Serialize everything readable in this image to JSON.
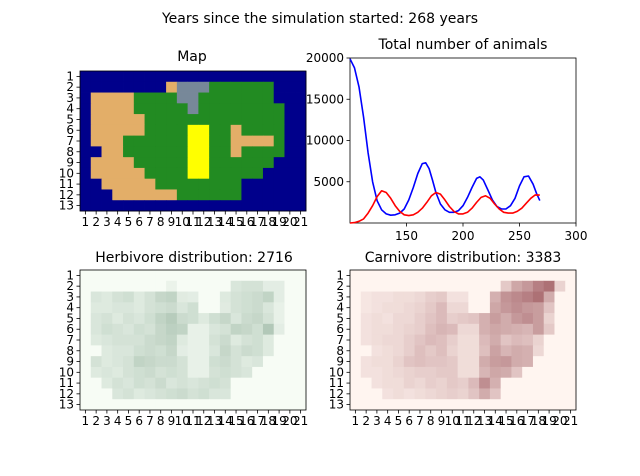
{
  "figure": {
    "suptitle": "Years since the simulation started: 268 years"
  },
  "colors": {
    "water": "#00008b",
    "desert": "#e3ae68",
    "lowland": "#228b22",
    "highland": "#778899",
    "selected": "#ffff00",
    "herbivore_line": "#0000ff",
    "carnivore_line": "#ff0000",
    "herb_cmap_low": "#f7fcf5",
    "herb_cmap_high": "#00441b",
    "carn_cmap_low": "#fff5f0",
    "carn_cmap_high": "#67000d"
  },
  "chart_data": [
    {
      "type": "heatmap",
      "title": "Map",
      "x_ticks": [
        "1",
        "2",
        "3",
        "4",
        "5",
        "6",
        "7",
        "8",
        "9",
        "10",
        "11",
        "12",
        "13",
        "14",
        "15",
        "16",
        "17",
        "18",
        "19",
        "20",
        "21"
      ],
      "y_ticks": [
        "1",
        "2",
        "3",
        "4",
        "5",
        "6",
        "7",
        "8",
        "9",
        "10",
        "11",
        "12",
        "13"
      ],
      "legend": {
        "W": "water",
        "D": "desert",
        "L": "lowland",
        "H": "highland",
        "Y": "selected"
      },
      "grid": [
        "WWWWWWWWWWWWWWWWWWWWW",
        "WWWWWWWWDHHHLLLLLLWWW",
        "WDDDDLLLLHHLLLLLLLWWW",
        "WDDDDLLLLLHLLLLLLLLWW",
        "WDDDDDLLLLLLLLLLLLLWW",
        "WDDDDDLLLLYYLLDLLLLWW",
        "WDDDLLLLLLYYLLDDDDLWW",
        "WWDDLLLLLLYYLLDLLLLWW",
        "WDDDDLLLLLYYLLLLLLWWW",
        "WDDDDDLLLLYYLLLLLWWWW",
        "WWDDDDDLLLLLLLLWWWWWW",
        "WWWDDDDDDLLLLLLWWWWWW",
        "WWWWWWWWWWWWWWWWWWWWW"
      ]
    },
    {
      "type": "line",
      "title": "Total number of animals",
      "xlim": [
        100,
        300
      ],
      "ylim": [
        0,
        20000
      ],
      "x_ticks": [
        150,
        200,
        250,
        300
      ],
      "y_ticks": [
        5000,
        10000,
        15000,
        20000
      ],
      "series": [
        {
          "color": "#0000ff",
          "x": [
            100,
            104,
            108,
            112,
            116,
            120,
            124,
            128,
            132,
            136,
            140,
            144,
            148,
            152,
            156,
            160,
            164,
            167,
            170,
            173,
            176,
            180,
            184,
            188,
            192,
            196,
            200,
            204,
            208,
            212,
            215,
            218,
            222,
            226,
            230,
            234,
            238,
            242,
            246,
            250,
            254,
            258,
            262,
            265,
            268
          ],
          "values": [
            19900,
            18800,
            16500,
            12800,
            8500,
            5000,
            2700,
            1600,
            1100,
            950,
            1000,
            1200,
            1700,
            2800,
            4300,
            6000,
            7200,
            7300,
            6600,
            5200,
            3700,
            2300,
            1600,
            1300,
            1300,
            1500,
            2100,
            3100,
            4300,
            5400,
            5600,
            5200,
            4000,
            2800,
            2000,
            1700,
            1700,
            2100,
            3000,
            4500,
            5600,
            5700,
            4700,
            3600,
            2716
          ]
        },
        {
          "color": "#ff0000",
          "x": [
            100,
            104,
            108,
            112,
            116,
            120,
            124,
            128,
            132,
            136,
            140,
            144,
            148,
            152,
            156,
            160,
            164,
            168,
            172,
            176,
            180,
            184,
            188,
            192,
            196,
            200,
            204,
            208,
            212,
            216,
            220,
            224,
            228,
            232,
            236,
            240,
            244,
            248,
            252,
            256,
            260,
            264,
            268
          ],
          "values": [
            0,
            50,
            200,
            500,
            1200,
            2100,
            3200,
            3900,
            3700,
            3000,
            2100,
            1400,
            1000,
            900,
            1000,
            1300,
            1800,
            2500,
            3300,
            3700,
            3500,
            2800,
            2000,
            1400,
            1100,
            1100,
            1300,
            1800,
            2500,
            3100,
            3300,
            3000,
            2300,
            1700,
            1300,
            1200,
            1200,
            1400,
            1800,
            2400,
            3000,
            3400,
            3383
          ]
        }
      ]
    },
    {
      "type": "heatmap",
      "title": "Herbivore distribution: 2716",
      "x_ticks": [
        "1",
        "2",
        "3",
        "4",
        "5",
        "6",
        "7",
        "8",
        "9",
        "10",
        "11",
        "12",
        "13",
        "14",
        "15",
        "16",
        "17",
        "18",
        "19",
        "20",
        "21"
      ],
      "y_ticks": [
        "1",
        "2",
        "3",
        "4",
        "5",
        "6",
        "7",
        "8",
        "9",
        "10",
        "11",
        "12",
        "13"
      ],
      "value_range": [
        0,
        100
      ],
      "grid": [
        [
          0,
          0,
          0,
          0,
          0,
          0,
          0,
          0,
          0,
          0,
          0,
          0,
          0,
          0,
          0,
          0,
          0,
          0,
          0,
          0,
          0
        ],
        [
          0,
          0,
          0,
          0,
          0,
          0,
          0,
          0,
          5,
          0,
          0,
          0,
          0,
          0,
          12,
          14,
          14,
          8,
          8,
          0,
          0
        ],
        [
          0,
          12,
          10,
          14,
          16,
          10,
          14,
          20,
          22,
          9,
          8,
          0,
          0,
          10,
          14,
          16,
          18,
          22,
          8,
          0,
          0
        ],
        [
          0,
          10,
          10,
          12,
          12,
          10,
          14,
          16,
          18,
          12,
          16,
          0,
          0,
          9,
          14,
          16,
          18,
          12,
          6,
          0,
          0
        ],
        [
          0,
          12,
          14,
          10,
          14,
          12,
          16,
          22,
          26,
          18,
          16,
          10,
          16,
          20,
          12,
          18,
          20,
          14,
          6,
          0,
          0
        ],
        [
          0,
          12,
          16,
          14,
          12,
          16,
          14,
          20,
          24,
          22,
          6,
          6,
          12,
          14,
          22,
          20,
          16,
          28,
          8,
          0,
          0
        ],
        [
          0,
          10,
          12,
          14,
          14,
          14,
          18,
          20,
          22,
          10,
          6,
          6,
          14,
          18,
          10,
          14,
          16,
          10,
          0,
          0,
          0
        ],
        [
          0,
          0,
          10,
          12,
          12,
          16,
          18,
          16,
          20,
          8,
          6,
          6,
          12,
          20,
          14,
          18,
          16,
          10,
          0,
          0,
          0
        ],
        [
          0,
          14,
          10,
          12,
          14,
          22,
          20,
          18,
          18,
          14,
          6,
          6,
          16,
          18,
          14,
          10,
          12,
          0,
          0,
          0,
          0
        ],
        [
          0,
          10,
          12,
          10,
          14,
          16,
          18,
          14,
          16,
          14,
          6,
          6,
          14,
          16,
          14,
          12,
          0,
          0,
          0,
          0,
          0
        ],
        [
          0,
          0,
          10,
          14,
          12,
          16,
          14,
          18,
          12,
          14,
          12,
          14,
          16,
          14,
          0,
          0,
          0,
          0,
          0,
          0,
          0
        ],
        [
          0,
          0,
          0,
          12,
          14,
          10,
          12,
          14,
          16,
          18,
          14,
          16,
          12,
          12,
          0,
          0,
          0,
          0,
          0,
          0,
          0
        ],
        [
          0,
          0,
          0,
          0,
          0,
          0,
          0,
          0,
          0,
          0,
          0,
          0,
          0,
          0,
          0,
          0,
          0,
          0,
          0,
          0,
          0
        ]
      ]
    },
    {
      "type": "heatmap",
      "title": "Carnivore distribution: 3383",
      "x_ticks": [
        "1",
        "2",
        "3",
        "4",
        "5",
        "6",
        "7",
        "8",
        "9",
        "10",
        "11",
        "12",
        "13",
        "14",
        "15",
        "16",
        "17",
        "18",
        "19",
        "20",
        "21"
      ],
      "y_ticks": [
        "1",
        "2",
        "3",
        "4",
        "5",
        "6",
        "7",
        "8",
        "9",
        "10",
        "11",
        "12",
        "13"
      ],
      "value_range": [
        0,
        100
      ],
      "grid": [
        [
          0,
          0,
          0,
          0,
          0,
          0,
          0,
          0,
          0,
          0,
          0,
          0,
          0,
          0,
          0,
          0,
          0,
          0,
          0,
          0,
          0
        ],
        [
          0,
          0,
          0,
          0,
          0,
          0,
          0,
          0,
          0,
          0,
          0,
          0,
          0,
          0,
          18,
          32,
          38,
          48,
          54,
          14,
          0
        ],
        [
          0,
          6,
          8,
          8,
          10,
          10,
          12,
          16,
          18,
          8,
          8,
          0,
          0,
          28,
          40,
          44,
          48,
          54,
          30,
          0,
          0
        ],
        [
          0,
          6,
          8,
          10,
          10,
          12,
          14,
          18,
          24,
          12,
          12,
          0,
          0,
          32,
          38,
          42,
          38,
          36,
          20,
          0,
          0
        ],
        [
          0,
          8,
          10,
          8,
          12,
          12,
          16,
          20,
          24,
          16,
          18,
          20,
          28,
          36,
          30,
          38,
          42,
          36,
          14,
          0,
          0
        ],
        [
          0,
          8,
          10,
          10,
          12,
          14,
          16,
          22,
          26,
          24,
          12,
          12,
          28,
          32,
          30,
          28,
          26,
          36,
          18,
          0,
          0
        ],
        [
          0,
          8,
          10,
          12,
          12,
          16,
          20,
          24,
          22,
          16,
          10,
          10,
          24,
          30,
          20,
          24,
          22,
          14,
          0,
          0,
          0
        ],
        [
          0,
          0,
          8,
          10,
          12,
          16,
          22,
          18,
          22,
          14,
          10,
          10,
          22,
          34,
          26,
          30,
          28,
          12,
          0,
          0,
          0
        ],
        [
          0,
          8,
          10,
          10,
          14,
          20,
          22,
          20,
          20,
          18,
          10,
          10,
          30,
          36,
          38,
          30,
          28,
          0,
          0,
          0,
          0
        ],
        [
          0,
          8,
          8,
          10,
          12,
          14,
          16,
          16,
          18,
          18,
          10,
          10,
          26,
          32,
          30,
          20,
          0,
          0,
          0,
          0,
          0
        ],
        [
          0,
          0,
          8,
          10,
          10,
          14,
          12,
          16,
          14,
          18,
          16,
          24,
          42,
          28,
          0,
          0,
          0,
          0,
          0,
          0,
          0
        ],
        [
          0,
          0,
          0,
          8,
          10,
          8,
          10,
          12,
          14,
          16,
          14,
          20,
          30,
          20,
          0,
          0,
          0,
          0,
          0,
          0,
          0
        ],
        [
          0,
          0,
          0,
          0,
          0,
          0,
          0,
          0,
          0,
          0,
          0,
          0,
          0,
          0,
          0,
          0,
          0,
          0,
          0,
          0,
          0
        ]
      ]
    }
  ]
}
